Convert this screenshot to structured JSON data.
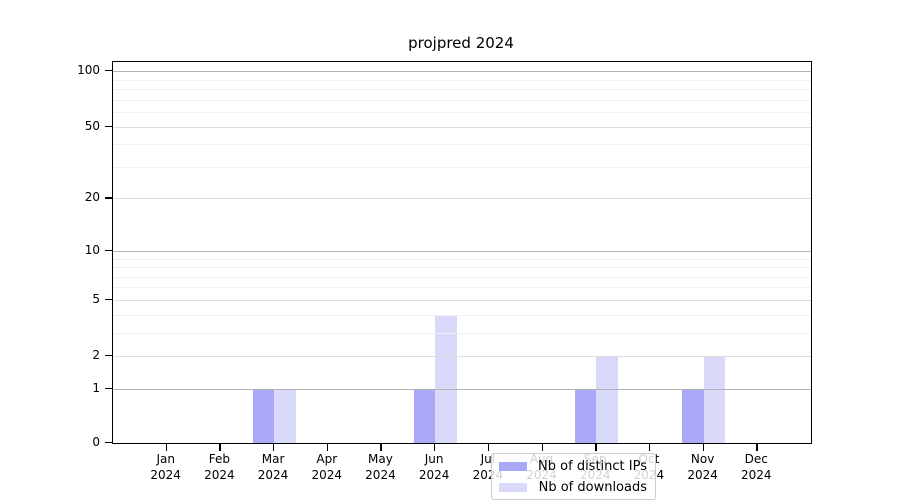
{
  "title": "projpred 2024",
  "chart_data": {
    "type": "bar",
    "title": "projpred 2024",
    "categories": [
      "Jan",
      "Feb",
      "Mar",
      "Apr",
      "May",
      "Jun",
      "Jul",
      "Aug",
      "Sep",
      "Oct",
      "Nov",
      "Dec"
    ],
    "x_tick_year": "2024",
    "series": [
      {
        "name": "Nb of distinct IPs",
        "color": "#a9a9f7",
        "values": [
          0,
          0,
          1,
          0,
          0,
          1,
          0,
          0,
          1,
          0,
          1,
          0
        ]
      },
      {
        "name": "Nb of downloads",
        "color": "#d9d9f9",
        "values": [
          0,
          0,
          1,
          0,
          0,
          4,
          0,
          0,
          2,
          0,
          2,
          0
        ]
      }
    ],
    "xlabel": "",
    "ylabel": "",
    "yscale": "log1p",
    "ylim": [
      0,
      110
    ],
    "y_ticks": [
      0,
      1,
      2,
      5,
      10,
      20,
      50,
      100
    ],
    "y_minor_grid": [
      3,
      4,
      6,
      7,
      8,
      9,
      30,
      40,
      60,
      70,
      80,
      90
    ],
    "y_decade_grid": [
      1,
      10,
      100
    ],
    "grid": true,
    "legend_position": "lower center"
  },
  "legend": {
    "items": [
      {
        "label": "Nb of distinct IPs"
      },
      {
        "label": "Nb of downloads"
      }
    ]
  }
}
